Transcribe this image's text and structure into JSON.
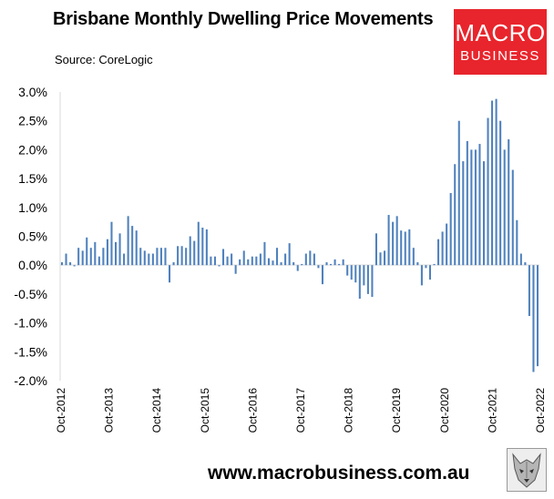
{
  "header": {
    "title": "Brisbane Monthly Dwelling Price Movements",
    "source": "Source: CoreLogic"
  },
  "logo": {
    "line1": "MACRO",
    "line2": "BUSINESS",
    "color": "#e8252c"
  },
  "footer": {
    "website": "www.macrobusiness.com.au",
    "mascot": "wolf-logo-icon"
  },
  "chart_data": {
    "type": "bar",
    "ylim": [
      -2.0,
      3.0
    ],
    "ytick_values": [
      -2.0,
      -1.5,
      -1.0,
      -0.5,
      0.0,
      0.5,
      1.0,
      1.5,
      2.0,
      2.5,
      3.0
    ],
    "ytick_labels": [
      "-2.0%",
      "-1.5%",
      "-1.0%",
      "-0.5%",
      "0.0%",
      "0.5%",
      "1.0%",
      "1.5%",
      "2.0%",
      "2.5%",
      "3.0%"
    ],
    "xtick_labels": [
      "Oct-2012",
      "Oct-2013",
      "Oct-2014",
      "Oct-2015",
      "Oct-2016",
      "Oct-2017",
      "Oct-2018",
      "Oct-2019",
      "Oct-2020",
      "Oct-2021",
      "Oct-2022"
    ],
    "x_start": "Oct-2012",
    "x_end": "Oct-2022",
    "bar_color": "#4f81bd",
    "grid": false,
    "values": [
      0.05,
      0.2,
      0.05,
      -0.02,
      0.3,
      0.25,
      0.48,
      0.3,
      0.4,
      0.15,
      0.3,
      0.45,
      0.75,
      0.4,
      0.55,
      0.2,
      0.85,
      0.68,
      0.6,
      0.3,
      0.25,
      0.2,
      0.2,
      0.3,
      0.3,
      0.3,
      -0.3,
      0.05,
      0.33,
      0.33,
      0.3,
      0.5,
      0.42,
      0.75,
      0.65,
      0.62,
      0.15,
      0.15,
      -0.02,
      0.28,
      0.15,
      0.2,
      -0.15,
      0.1,
      0.25,
      0.1,
      0.15,
      0.15,
      0.2,
      0.4,
      0.12,
      0.08,
      0.3,
      0.05,
      0.2,
      0.38,
      0.05,
      -0.1,
      0.02,
      0.2,
      0.25,
      0.2,
      -0.05,
      -0.33,
      0.05,
      0.02,
      0.1,
      0.02,
      0.1,
      -0.18,
      -0.25,
      -0.3,
      -0.58,
      -0.35,
      -0.5,
      -0.55,
      0.55,
      0.22,
      0.25,
      0.87,
      0.75,
      0.85,
      0.6,
      0.58,
      0.62,
      0.3,
      0.05,
      -0.35,
      -0.05,
      -0.25,
      0.02,
      0.45,
      0.58,
      0.72,
      1.25,
      1.75,
      2.5,
      1.8,
      2.15,
      2.0,
      2.0,
      2.1,
      1.8,
      2.55,
      2.85,
      2.88,
      2.5,
      2.0,
      2.18,
      1.65,
      0.78,
      0.2,
      0.05,
      -0.88,
      -1.85,
      -1.75
    ]
  }
}
